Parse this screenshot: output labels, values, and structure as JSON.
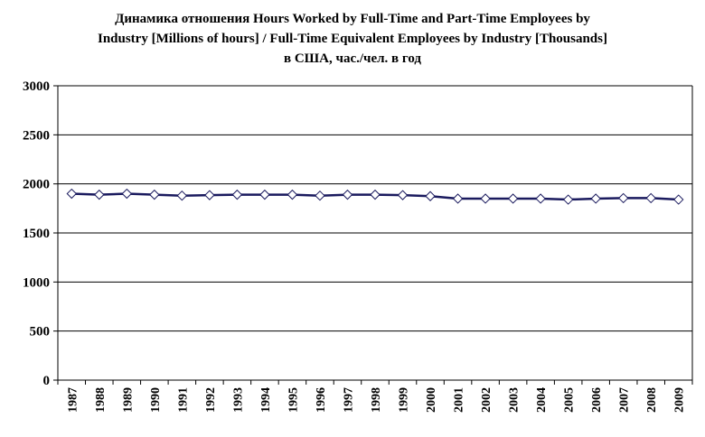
{
  "chart_data": {
    "type": "line",
    "title_lines": [
      "Динамика отношения Hours Worked by Full-Time and Part-Time Employees by",
      "Industry [Millions of hours] / Full-Time Equivalent Employees by Industry [Thousands]",
      "в США, час./чел. в год"
    ],
    "categories": [
      "1987",
      "1988",
      "1989",
      "1990",
      "1991",
      "1992",
      "1993",
      "1994",
      "1995",
      "1996",
      "1997",
      "1998",
      "1999",
      "2000",
      "2001",
      "2002",
      "2003",
      "2004",
      "2005",
      "2006",
      "2007",
      "2008",
      "2009"
    ],
    "series": [
      {
        "values": [
          1900,
          1890,
          1900,
          1890,
          1880,
          1885,
          1890,
          1890,
          1890,
          1880,
          1890,
          1890,
          1885,
          1875,
          1850,
          1850,
          1850,
          1850,
          1840,
          1850,
          1855,
          1855,
          1840
        ],
        "color": "#1a1a5e",
        "marker": "diamond"
      }
    ],
    "ylim": [
      0,
      3000
    ],
    "yticks": [
      "0",
      "500",
      "1000",
      "1500",
      "2000",
      "2500",
      "3000"
    ],
    "ytick_values": [
      0,
      500,
      1000,
      1500,
      2000,
      2500,
      3000
    ],
    "grid": true,
    "legend": "none"
  }
}
